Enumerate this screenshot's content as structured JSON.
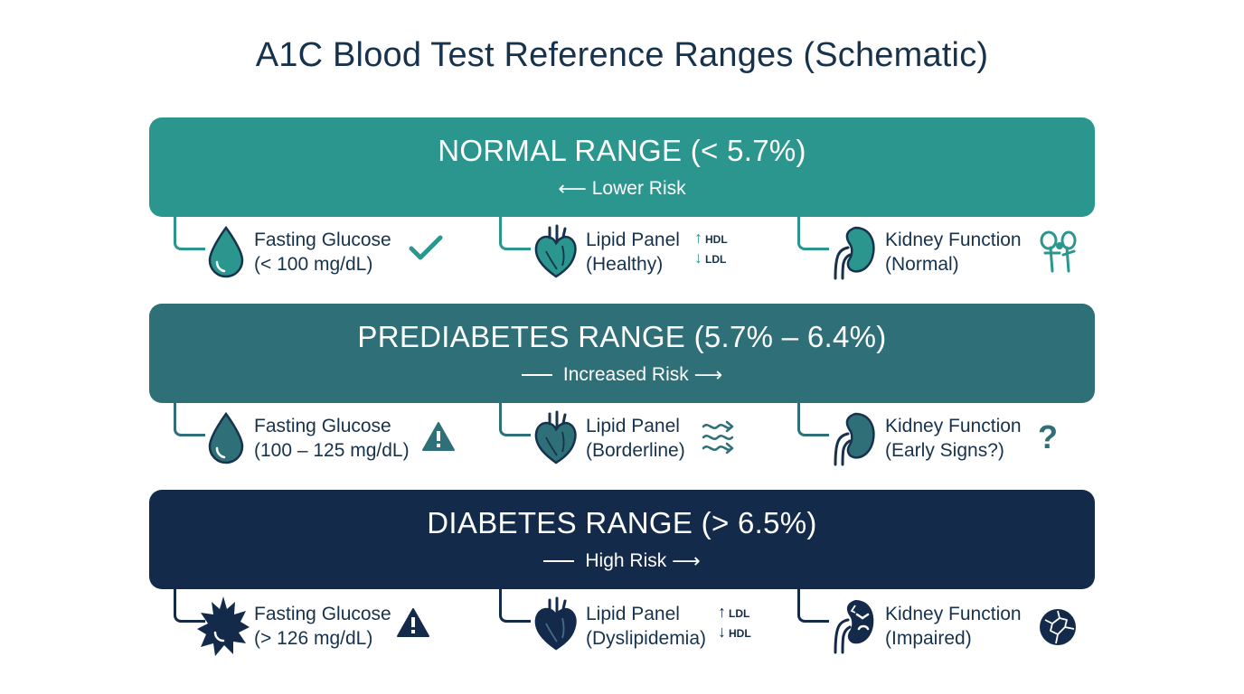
{
  "title": "A1C Blood Test Reference Ranges (Schematic)",
  "colors": {
    "normal": "#2a968e",
    "prediabetes": "#2e6f78",
    "diabetes": "#132a4b",
    "text": "#17324d"
  },
  "bands": [
    {
      "id": "normal",
      "title": "NORMAL RANGE (< 5.7%)",
      "risk": "Lower Risk",
      "items": [
        {
          "name": "fasting-glucose",
          "label": "Fasting Glucose",
          "detail": "(< 100 mg/dL)",
          "icon": "drop-icon",
          "status": "checkmark-icon"
        },
        {
          "name": "lipid-panel",
          "label": "Lipid Panel",
          "detail": "(Healthy)",
          "icon": "heart-icon",
          "status": "hdl-ldl-icon",
          "up": "HDL",
          "down": "LDL"
        },
        {
          "name": "kidney-function",
          "label": "Kidney Function",
          "detail": "(Normal)",
          "icon": "kidney-icon",
          "status": "kidney-tract-icon"
        }
      ]
    },
    {
      "id": "prediabetes",
      "title": "PREDIABETES RANGE (5.7% – 6.4%)",
      "risk": "Increased Risk",
      "items": [
        {
          "name": "fasting-glucose",
          "label": "Fasting Glucose",
          "detail": "(100 – 125 mg/dL)",
          "icon": "drop-icon",
          "status": "warning-icon"
        },
        {
          "name": "lipid-panel",
          "label": "Lipid Panel",
          "detail": "(Borderline)",
          "icon": "heart-icon",
          "status": "wavy-arrows-icon"
        },
        {
          "name": "kidney-function",
          "label": "Kidney Function",
          "detail": "(Early Signs?)",
          "icon": "kidney-icon",
          "status": "question-icon"
        }
      ]
    },
    {
      "id": "diabetes",
      "title": "DIABETES RANGE (> 6.5%)",
      "risk": "High Risk",
      "items": [
        {
          "name": "fasting-glucose",
          "label": "Fasting Glucose",
          "detail": "(> 126 mg/dL)",
          "icon": "spiky-drop-icon",
          "status": "warning-icon"
        },
        {
          "name": "lipid-panel",
          "label": "Lipid Panel",
          "detail": "(Dyslipidemia)",
          "icon": "heart-icon",
          "status": "ldl-hdl-icon",
          "up": "LDL",
          "down": "HDL"
        },
        {
          "name": "kidney-function",
          "label": "Kidney Function",
          "detail": "(Impaired)",
          "icon": "distressed-kidney-icon",
          "status": "cracked-sphere-icon"
        }
      ]
    }
  ]
}
